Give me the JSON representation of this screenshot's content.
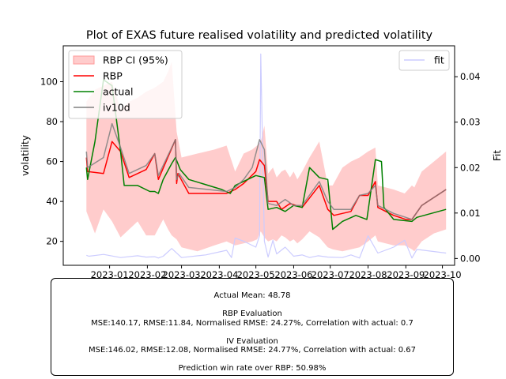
{
  "chart_data": {
    "type": "line",
    "title": "Plot of EXAS future realised volatility and predicted volatility",
    "ylabel_left": "volatility",
    "ylabel_right": "Fit",
    "ylim_left": [
      8,
      118
    ],
    "ylim_right": [
      -0.0015,
      0.0468
    ],
    "xlim": [
      "2022-11-24",
      "2023-10-11"
    ],
    "x_ticks": [
      "2023-01",
      "2023-02",
      "2023-03",
      "2023-04",
      "2023-05",
      "2023-06",
      "2023-07",
      "2023-08",
      "2023-09",
      "2023-10"
    ],
    "x_tick_dates": [
      "2023-01-01",
      "2023-02-01",
      "2023-03-01",
      "2023-04-01",
      "2023-05-01",
      "2023-06-01",
      "2023-07-01",
      "2023-08-01",
      "2023-09-01",
      "2023-10-01"
    ],
    "y_ticks_left": [
      20,
      40,
      60,
      80,
      100
    ],
    "y_ticks_right": [
      0.0,
      0.01,
      0.02,
      0.03,
      0.04
    ],
    "y_tick_labels_right": [
      "0.00",
      "0.01",
      "0.02",
      "0.03",
      "0.04"
    ],
    "legend_left": {
      "placement": "upper-left",
      "entries": [
        "RBP CI (95%)",
        "RBP",
        "actual",
        "iv10d"
      ]
    },
    "legend_right": {
      "placement": "upper-right",
      "entries": [
        "fit"
      ]
    },
    "colors": {
      "ci": "#ff9999",
      "rbp": "#ff0000",
      "actual": "#008000",
      "iv10d": "#808080",
      "fit": "#ccccff"
    },
    "ci_upper": [
      [
        "2022-12-13",
        90
      ],
      [
        "2022-12-20",
        96
      ],
      [
        "2022-12-27",
        98
      ],
      [
        "2023-01-03",
        100
      ],
      [
        "2023-01-10",
        86
      ],
      [
        "2023-01-17",
        90
      ],
      [
        "2023-01-24",
        92
      ],
      [
        "2023-01-31",
        95
      ],
      [
        "2023-02-07",
        97
      ],
      [
        "2023-02-14",
        100
      ],
      [
        "2023-02-18",
        105
      ],
      [
        "2023-02-21",
        110
      ],
      [
        "2023-02-25",
        75
      ],
      [
        "2023-03-01",
        62
      ],
      [
        "2023-03-14",
        64
      ],
      [
        "2023-03-28",
        66
      ],
      [
        "2023-04-07",
        68
      ],
      [
        "2023-04-14",
        55
      ],
      [
        "2023-04-21",
        64
      ],
      [
        "2023-04-28",
        66
      ],
      [
        "2023-05-02",
        68
      ],
      [
        "2023-05-05",
        70
      ],
      [
        "2023-05-08",
        78
      ],
      [
        "2023-05-11",
        54
      ],
      [
        "2023-05-15",
        57
      ],
      [
        "2023-05-18",
        52
      ],
      [
        "2023-05-22",
        55
      ],
      [
        "2023-05-25",
        56
      ],
      [
        "2023-05-29",
        52
      ],
      [
        "2023-06-01",
        55
      ],
      [
        "2023-06-04",
        51
      ],
      [
        "2023-06-08",
        55
      ],
      [
        "2023-06-14",
        62
      ],
      [
        "2023-06-22",
        70
      ],
      [
        "2023-06-29",
        48
      ],
      [
        "2023-07-03",
        48
      ],
      [
        "2023-07-11",
        57
      ],
      [
        "2023-07-18",
        60
      ],
      [
        "2023-07-25",
        62
      ],
      [
        "2023-08-01",
        65
      ],
      [
        "2023-08-07",
        67
      ],
      [
        "2023-08-09",
        48
      ],
      [
        "2023-08-22",
        46
      ],
      [
        "2023-08-31",
        44
      ],
      [
        "2023-09-06",
        48
      ],
      [
        "2023-09-08",
        47
      ],
      [
        "2023-09-14",
        55
      ],
      [
        "2023-09-24",
        60
      ],
      [
        "2023-10-04",
        65
      ]
    ],
    "ci_lower": [
      [
        "2023-10-04",
        26
      ],
      [
        "2023-09-24",
        24
      ],
      [
        "2023-09-14",
        20
      ],
      [
        "2023-09-08",
        15
      ],
      [
        "2023-09-06",
        16
      ],
      [
        "2023-08-31",
        18
      ],
      [
        "2023-08-22",
        18
      ],
      [
        "2023-08-09",
        20
      ],
      [
        "2023-08-07",
        23
      ],
      [
        "2023-08-01",
        20
      ],
      [
        "2023-07-25",
        17
      ],
      [
        "2023-07-18",
        16
      ],
      [
        "2023-07-11",
        15
      ],
      [
        "2023-07-03",
        16
      ],
      [
        "2023-06-29",
        17
      ],
      [
        "2023-06-22",
        22
      ],
      [
        "2023-06-14",
        25
      ],
      [
        "2023-06-08",
        21
      ],
      [
        "2023-06-04",
        19
      ],
      [
        "2023-06-01",
        21
      ],
      [
        "2023-05-29",
        20
      ],
      [
        "2023-05-25",
        22
      ],
      [
        "2023-05-22",
        23
      ],
      [
        "2023-05-18",
        20
      ],
      [
        "2023-05-15",
        21
      ],
      [
        "2023-05-11",
        20
      ],
      [
        "2023-05-08",
        22
      ],
      [
        "2023-05-05",
        25
      ],
      [
        "2023-05-02",
        21
      ],
      [
        "2023-04-28",
        20
      ],
      [
        "2023-04-21",
        19
      ],
      [
        "2023-04-14",
        18
      ],
      [
        "2023-04-07",
        20
      ],
      [
        "2023-03-28",
        18
      ],
      [
        "2023-03-14",
        15
      ],
      [
        "2023-03-01",
        17
      ],
      [
        "2023-02-25",
        21
      ],
      [
        "2023-02-21",
        23
      ],
      [
        "2023-02-18",
        26
      ],
      [
        "2023-02-14",
        31
      ],
      [
        "2023-02-07",
        23
      ],
      [
        "2023-01-31",
        23
      ],
      [
        "2023-01-24",
        30
      ],
      [
        "2023-01-17",
        26
      ],
      [
        "2023-01-10",
        22
      ],
      [
        "2023-01-03",
        30
      ],
      [
        "2022-12-27",
        36
      ],
      [
        "2022-12-20",
        24
      ],
      [
        "2022-12-13",
        35
      ]
    ],
    "series": [
      {
        "name": "fit",
        "axis": "right",
        "points": [
          [
            "2022-12-13",
            0.0007
          ],
          [
            "2022-12-15",
            0.0005
          ],
          [
            "2022-12-27",
            0.0009
          ],
          [
            "2023-01-10",
            0.0002
          ],
          [
            "2023-01-24",
            0.0006
          ],
          [
            "2023-01-31",
            0.0003
          ],
          [
            "2023-02-07",
            0.0004
          ],
          [
            "2023-02-10",
            0.0001
          ],
          [
            "2023-02-14",
            0.0005
          ],
          [
            "2023-02-21",
            0.0022
          ],
          [
            "2023-03-01",
            0.0002
          ],
          [
            "2023-03-21",
            0.0008
          ],
          [
            "2023-04-07",
            0.0018
          ],
          [
            "2023-04-11",
            0.0002
          ],
          [
            "2023-04-14",
            0.0045
          ],
          [
            "2023-04-21",
            0.0038
          ],
          [
            "2023-05-01",
            0.0025
          ],
          [
            "2023-05-04",
            0.005
          ],
          [
            "2023-05-05",
            0.045
          ],
          [
            "2023-05-08",
            0.0038
          ],
          [
            "2023-05-11",
            0.0003
          ],
          [
            "2023-05-15",
            0.004
          ],
          [
            "2023-05-18",
            0.001
          ],
          [
            "2023-05-25",
            0.0025
          ],
          [
            "2023-06-01",
            0.0005
          ],
          [
            "2023-06-08",
            0.0008
          ],
          [
            "2023-06-14",
            0.0002
          ],
          [
            "2023-06-21",
            0.0006
          ],
          [
            "2023-06-29",
            0.0003
          ],
          [
            "2023-07-11",
            0.0002
          ],
          [
            "2023-07-18",
            0.0008
          ],
          [
            "2023-07-25",
            0.0001
          ],
          [
            "2023-08-01",
            0.005
          ],
          [
            "2023-08-09",
            0.0012
          ],
          [
            "2023-08-22",
            0.0025
          ],
          [
            "2023-08-31",
            0.004
          ],
          [
            "2023-09-06",
            0.0001
          ],
          [
            "2023-09-10",
            0.002
          ],
          [
            "2023-10-04",
            0.0012
          ]
        ]
      },
      {
        "name": "RBP",
        "axis": "left",
        "points": [
          [
            "2022-12-13",
            62
          ],
          [
            "2022-12-14",
            55
          ],
          [
            "2022-12-27",
            54
          ],
          [
            "2023-01-03",
            70
          ],
          [
            "2023-01-10",
            65
          ],
          [
            "2023-01-17",
            52
          ],
          [
            "2023-01-31",
            56
          ],
          [
            "2023-02-07",
            64
          ],
          [
            "2023-02-10",
            51
          ],
          [
            "2023-02-24",
            71
          ],
          [
            "2023-02-25",
            49
          ],
          [
            "2023-02-26",
            54
          ],
          [
            "2023-03-07",
            44
          ],
          [
            "2023-04-07",
            44
          ],
          [
            "2023-04-14",
            46
          ],
          [
            "2023-04-21",
            49
          ],
          [
            "2023-05-01",
            55
          ],
          [
            "2023-05-04",
            61
          ],
          [
            "2023-05-08",
            58
          ],
          [
            "2023-05-11",
            40
          ],
          [
            "2023-05-18",
            40
          ],
          [
            "2023-05-22",
            36
          ],
          [
            "2023-05-29",
            39
          ],
          [
            "2023-06-08",
            37
          ],
          [
            "2023-06-22",
            48
          ],
          [
            "2023-06-29",
            36
          ],
          [
            "2023-07-04",
            33
          ],
          [
            "2023-07-18",
            35
          ],
          [
            "2023-07-25",
            43
          ],
          [
            "2023-08-01",
            43
          ],
          [
            "2023-08-07",
            50
          ],
          [
            "2023-08-09",
            37
          ],
          [
            "2023-08-22",
            33
          ],
          [
            "2023-09-01",
            31
          ],
          [
            "2023-09-06",
            31
          ],
          [
            "2023-09-14",
            38
          ],
          [
            "2023-10-04",
            46
          ]
        ]
      },
      {
        "name": "actual",
        "axis": "left",
        "points": [
          [
            "2022-12-13",
            57
          ],
          [
            "2022-12-14",
            51
          ],
          [
            "2022-12-20",
            70
          ],
          [
            "2022-12-27",
            101
          ],
          [
            "2023-01-03",
            98
          ],
          [
            "2023-01-10",
            65
          ],
          [
            "2023-01-13",
            48
          ],
          [
            "2023-01-24",
            48
          ],
          [
            "2023-02-03",
            45
          ],
          [
            "2023-02-07",
            45
          ],
          [
            "2023-02-10",
            44
          ],
          [
            "2023-02-14",
            51
          ],
          [
            "2023-02-21",
            59
          ],
          [
            "2023-02-24",
            62
          ],
          [
            "2023-02-28",
            56
          ],
          [
            "2023-03-07",
            51
          ],
          [
            "2023-04-03",
            46
          ],
          [
            "2023-04-10",
            44
          ],
          [
            "2023-04-14",
            48
          ],
          [
            "2023-05-01",
            53
          ],
          [
            "2023-05-08",
            52
          ],
          [
            "2023-05-11",
            36
          ],
          [
            "2023-05-18",
            37
          ],
          [
            "2023-05-25",
            35
          ],
          [
            "2023-06-01",
            38
          ],
          [
            "2023-06-08",
            37
          ],
          [
            "2023-06-14",
            57
          ],
          [
            "2023-06-22",
            52
          ],
          [
            "2023-06-29",
            51
          ],
          [
            "2023-07-03",
            26
          ],
          [
            "2023-07-11",
            30
          ],
          [
            "2023-07-22",
            33
          ],
          [
            "2023-07-31",
            31
          ],
          [
            "2023-08-07",
            61
          ],
          [
            "2023-08-12",
            60
          ],
          [
            "2023-08-14",
            37
          ],
          [
            "2023-08-22",
            31
          ],
          [
            "2023-09-06",
            30
          ],
          [
            "2023-09-10",
            32
          ],
          [
            "2023-10-04",
            36
          ]
        ]
      },
      {
        "name": "iv10d",
        "axis": "left",
        "points": [
          [
            "2022-12-13",
            65
          ],
          [
            "2022-12-14",
            57
          ],
          [
            "2022-12-27",
            62
          ],
          [
            "2023-01-03",
            79
          ],
          [
            "2023-01-10",
            67
          ],
          [
            "2023-01-17",
            54
          ],
          [
            "2023-01-31",
            58
          ],
          [
            "2023-02-07",
            64
          ],
          [
            "2023-02-10",
            53
          ],
          [
            "2023-02-21",
            67
          ],
          [
            "2023-02-24",
            71
          ],
          [
            "2023-02-25",
            51
          ],
          [
            "2023-02-27",
            54
          ],
          [
            "2023-03-07",
            47
          ],
          [
            "2023-04-07",
            45
          ],
          [
            "2023-04-14",
            47
          ],
          [
            "2023-04-21",
            51
          ],
          [
            "2023-04-28",
            57
          ],
          [
            "2023-05-04",
            71
          ],
          [
            "2023-05-08",
            66
          ],
          [
            "2023-05-11",
            39
          ],
          [
            "2023-05-18",
            38
          ],
          [
            "2023-05-25",
            41
          ],
          [
            "2023-06-01",
            38
          ],
          [
            "2023-06-08",
            38
          ],
          [
            "2023-06-22",
            50
          ],
          [
            "2023-06-29",
            40
          ],
          [
            "2023-07-04",
            36
          ],
          [
            "2023-07-18",
            36
          ],
          [
            "2023-07-25",
            43
          ],
          [
            "2023-08-01",
            44
          ],
          [
            "2023-08-07",
            48
          ],
          [
            "2023-08-09",
            38
          ],
          [
            "2023-08-22",
            34
          ],
          [
            "2023-09-01",
            32
          ],
          [
            "2023-09-06",
            31
          ],
          [
            "2023-09-14",
            38
          ],
          [
            "2023-10-04",
            46
          ]
        ]
      }
    ]
  },
  "stats": {
    "actual_mean": "Actual Mean: 48.78",
    "rbp_header": "RBP Evaluation",
    "rbp_line": "MSE:140.17, RMSE:11.84, Normalised RMSE: 24.27%, Correlation with actual: 0.7",
    "iv_header": "IV Evaluation",
    "iv_line": "MSE:146.02, RMSE:12.08, Normalised RMSE: 24.77%, Correlation with actual: 0.67",
    "win_rate": "Prediction win rate over RBP: 50.98%"
  }
}
